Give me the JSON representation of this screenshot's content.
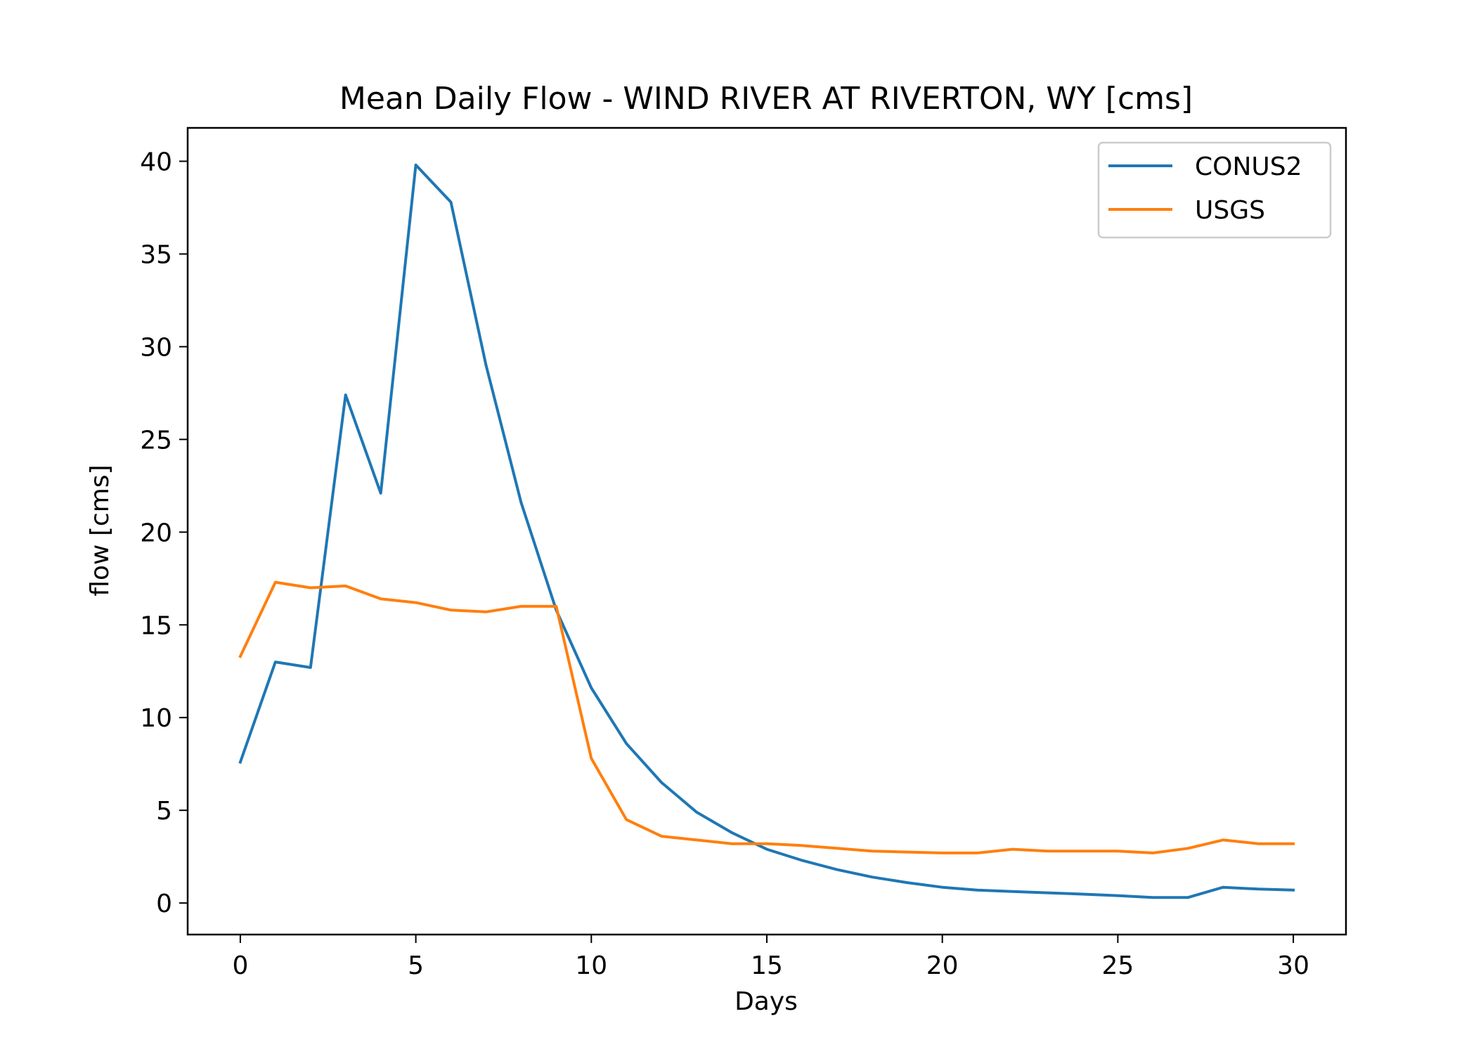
{
  "chart_data": {
    "type": "line",
    "title": "Mean Daily Flow - WIND RIVER AT RIVERTON, WY [cms]",
    "xlabel": "Days",
    "ylabel": "flow [cms]",
    "xlim": [
      -1.5,
      31.5
    ],
    "ylim": [
      -1.7,
      41.8
    ],
    "xticks": [
      0,
      5,
      10,
      15,
      20,
      25,
      30
    ],
    "yticks": [
      0,
      5,
      10,
      15,
      20,
      25,
      30,
      35,
      40
    ],
    "grid": false,
    "legend_position": "top-right",
    "x": [
      0,
      1,
      2,
      3,
      4,
      5,
      6,
      7,
      8,
      9,
      10,
      11,
      12,
      13,
      14,
      15,
      16,
      17,
      18,
      19,
      20,
      21,
      22,
      23,
      24,
      25,
      26,
      27,
      28,
      29,
      30
    ],
    "series": [
      {
        "name": "CONUS2",
        "color": "#1f77b4",
        "values": [
          7.6,
          13.0,
          12.7,
          27.4,
          22.1,
          39.8,
          37.8,
          29.0,
          21.6,
          15.8,
          11.6,
          8.6,
          6.5,
          4.9,
          3.8,
          2.9,
          2.3,
          1.8,
          1.4,
          1.1,
          0.85,
          0.7,
          0.62,
          0.55,
          0.48,
          0.4,
          0.3,
          0.3,
          0.85,
          0.75,
          0.7
        ]
      },
      {
        "name": "USGS",
        "color": "#ff7f0e",
        "values": [
          13.3,
          17.3,
          17.0,
          17.1,
          16.4,
          16.2,
          15.8,
          15.7,
          16.0,
          16.0,
          7.8,
          4.5,
          3.6,
          3.4,
          3.2,
          3.2,
          3.1,
          2.95,
          2.8,
          2.75,
          2.7,
          2.7,
          2.9,
          2.8,
          2.8,
          2.8,
          2.7,
          2.95,
          3.4,
          3.2,
          3.2
        ]
      }
    ]
  }
}
